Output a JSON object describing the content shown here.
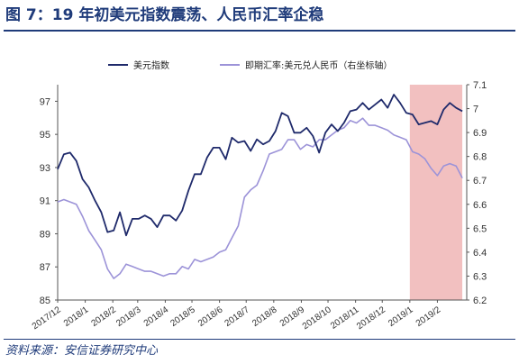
{
  "title": "图 7：19 年初美元指数震荡、人民币汇率企稳",
  "source": "资料来源：安信证券研究中心",
  "colors": {
    "dxy": "#1f2a6b",
    "cny": "#9c93d8",
    "highlight": "#f2c0c0",
    "title": "#1f3b7a"
  },
  "chart_data": {
    "type": "line",
    "x_ticks": [
      "2017/12",
      "2018/1",
      "2018/2",
      "2018/3",
      "2018/4",
      "2018/5",
      "2018/6",
      "2018/7",
      "2018/8",
      "2018/9",
      "2018/10",
      "2018/11",
      "2018/12",
      "2019/1",
      "2019/2"
    ],
    "y_left": {
      "ticks": [
        85,
        87,
        89,
        91,
        93,
        95,
        97
      ],
      "min": 85,
      "max": 98
    },
    "y_right": {
      "ticks": [
        6.2,
        6.3,
        6.4,
        6.5,
        6.6,
        6.7,
        6.8,
        6.9,
        7.0,
        7.1
      ],
      "min": 6.2,
      "max": 7.1
    },
    "highlight_range": [
      "2019/1",
      "2019/3"
    ],
    "legend_position": "top",
    "series": [
      {
        "name": "美元指数",
        "axis": "left",
        "points": [
          [
            "2017/12/01",
            92.9
          ],
          [
            "2017/12/08",
            93.8
          ],
          [
            "2017/12/15",
            93.9
          ],
          [
            "2017/12/22",
            93.4
          ],
          [
            "2017/12/29",
            92.3
          ],
          [
            "2018/01/05",
            91.8
          ],
          [
            "2018/01/12",
            91.0
          ],
          [
            "2018/01/19",
            90.3
          ],
          [
            "2018/01/26",
            89.1
          ],
          [
            "2018/02/02",
            89.2
          ],
          [
            "2018/02/09",
            90.3
          ],
          [
            "2018/02/16",
            88.9
          ],
          [
            "2018/02/23",
            89.9
          ],
          [
            "2018/03/02",
            89.9
          ],
          [
            "2018/03/09",
            90.1
          ],
          [
            "2018/03/16",
            89.9
          ],
          [
            "2018/03/23",
            89.4
          ],
          [
            "2018/03/30",
            90.1
          ],
          [
            "2018/04/06",
            90.1
          ],
          [
            "2018/04/13",
            89.8
          ],
          [
            "2018/04/20",
            90.4
          ],
          [
            "2018/04/27",
            91.6
          ],
          [
            "2018/05/04",
            92.6
          ],
          [
            "2018/05/11",
            92.6
          ],
          [
            "2018/05/18",
            93.6
          ],
          [
            "2018/05/25",
            94.2
          ],
          [
            "2018/06/01",
            94.2
          ],
          [
            "2018/06/08",
            93.5
          ],
          [
            "2018/06/15",
            94.8
          ],
          [
            "2018/06/22",
            94.5
          ],
          [
            "2018/06/29",
            94.6
          ],
          [
            "2018/07/06",
            94.0
          ],
          [
            "2018/07/13",
            94.7
          ],
          [
            "2018/07/20",
            94.4
          ],
          [
            "2018/07/27",
            94.6
          ],
          [
            "2018/08/03",
            95.2
          ],
          [
            "2018/08/10",
            96.3
          ],
          [
            "2018/08/17",
            96.1
          ],
          [
            "2018/08/24",
            95.1
          ],
          [
            "2018/08/31",
            95.1
          ],
          [
            "2018/09/07",
            95.4
          ],
          [
            "2018/09/14",
            94.9
          ],
          [
            "2018/09/21",
            93.9
          ],
          [
            "2018/09/28",
            95.1
          ],
          [
            "2018/10/05",
            95.6
          ],
          [
            "2018/10/12",
            95.2
          ],
          [
            "2018/10/19",
            95.7
          ],
          [
            "2018/10/26",
            96.4
          ],
          [
            "2018/11/02",
            96.5
          ],
          [
            "2018/11/09",
            96.9
          ],
          [
            "2018/11/16",
            96.5
          ],
          [
            "2018/11/23",
            96.8
          ],
          [
            "2018/11/30",
            97.1
          ],
          [
            "2018/12/07",
            96.6
          ],
          [
            "2018/12/14",
            97.4
          ],
          [
            "2018/12/21",
            96.9
          ],
          [
            "2018/12/28",
            96.3
          ],
          [
            "2019/01/04",
            96.2
          ],
          [
            "2019/01/11",
            95.6
          ],
          [
            "2019/01/18",
            95.7
          ],
          [
            "2019/01/25",
            95.8
          ],
          [
            "2019/02/01",
            95.6
          ],
          [
            "2019/02/08",
            96.5
          ],
          [
            "2019/02/15",
            96.9
          ],
          [
            "2019/02/22",
            96.6
          ],
          [
            "2019/03/01",
            96.4
          ]
        ]
      },
      {
        "name": "即期汇率:美元兑人民币（右坐标轴）",
        "axis": "right",
        "points": [
          [
            "2017/12/01",
            6.61
          ],
          [
            "2017/12/08",
            6.62
          ],
          [
            "2017/12/15",
            6.61
          ],
          [
            "2017/12/22",
            6.6
          ],
          [
            "2017/12/29",
            6.55
          ],
          [
            "2018/01/05",
            6.49
          ],
          [
            "2018/01/12",
            6.45
          ],
          [
            "2018/01/19",
            6.41
          ],
          [
            "2018/01/26",
            6.33
          ],
          [
            "2018/02/02",
            6.29
          ],
          [
            "2018/02/09",
            6.31
          ],
          [
            "2018/02/16",
            6.35
          ],
          [
            "2018/02/23",
            6.34
          ],
          [
            "2018/03/02",
            6.33
          ],
          [
            "2018/03/09",
            6.32
          ],
          [
            "2018/03/16",
            6.32
          ],
          [
            "2018/03/23",
            6.31
          ],
          [
            "2018/03/30",
            6.3
          ],
          [
            "2018/04/06",
            6.31
          ],
          [
            "2018/04/13",
            6.31
          ],
          [
            "2018/04/20",
            6.34
          ],
          [
            "2018/04/27",
            6.33
          ],
          [
            "2018/05/04",
            6.37
          ],
          [
            "2018/05/11",
            6.36
          ],
          [
            "2018/05/18",
            6.37
          ],
          [
            "2018/05/25",
            6.38
          ],
          [
            "2018/06/01",
            6.4
          ],
          [
            "2018/06/08",
            6.41
          ],
          [
            "2018/06/15",
            6.46
          ],
          [
            "2018/06/22",
            6.51
          ],
          [
            "2018/06/29",
            6.63
          ],
          [
            "2018/07/06",
            6.66
          ],
          [
            "2018/07/13",
            6.68
          ],
          [
            "2018/07/20",
            6.74
          ],
          [
            "2018/07/27",
            6.81
          ],
          [
            "2018/08/03",
            6.82
          ],
          [
            "2018/08/10",
            6.83
          ],
          [
            "2018/08/17",
            6.87
          ],
          [
            "2018/08/24",
            6.87
          ],
          [
            "2018/08/31",
            6.83
          ],
          [
            "2018/09/07",
            6.85
          ],
          [
            "2018/09/14",
            6.84
          ],
          [
            "2018/09/21",
            6.87
          ],
          [
            "2018/09/28",
            6.87
          ],
          [
            "2018/10/05",
            6.89
          ],
          [
            "2018/10/12",
            6.91
          ],
          [
            "2018/10/19",
            6.92
          ],
          [
            "2018/10/26",
            6.95
          ],
          [
            "2018/11/02",
            6.94
          ],
          [
            "2018/11/09",
            6.96
          ],
          [
            "2018/11/16",
            6.93
          ],
          [
            "2018/11/23",
            6.93
          ],
          [
            "2018/11/30",
            6.92
          ],
          [
            "2018/12/07",
            6.91
          ],
          [
            "2018/12/14",
            6.89
          ],
          [
            "2018/12/21",
            6.88
          ],
          [
            "2018/12/28",
            6.87
          ],
          [
            "2019/01/04",
            6.82
          ],
          [
            "2019/01/11",
            6.81
          ],
          [
            "2019/01/18",
            6.79
          ],
          [
            "2019/01/25",
            6.75
          ],
          [
            "2019/02/01",
            6.72
          ],
          [
            "2019/02/08",
            6.76
          ],
          [
            "2019/02/15",
            6.77
          ],
          [
            "2019/02/22",
            6.76
          ],
          [
            "2019/03/01",
            6.71
          ]
        ]
      }
    ]
  }
}
